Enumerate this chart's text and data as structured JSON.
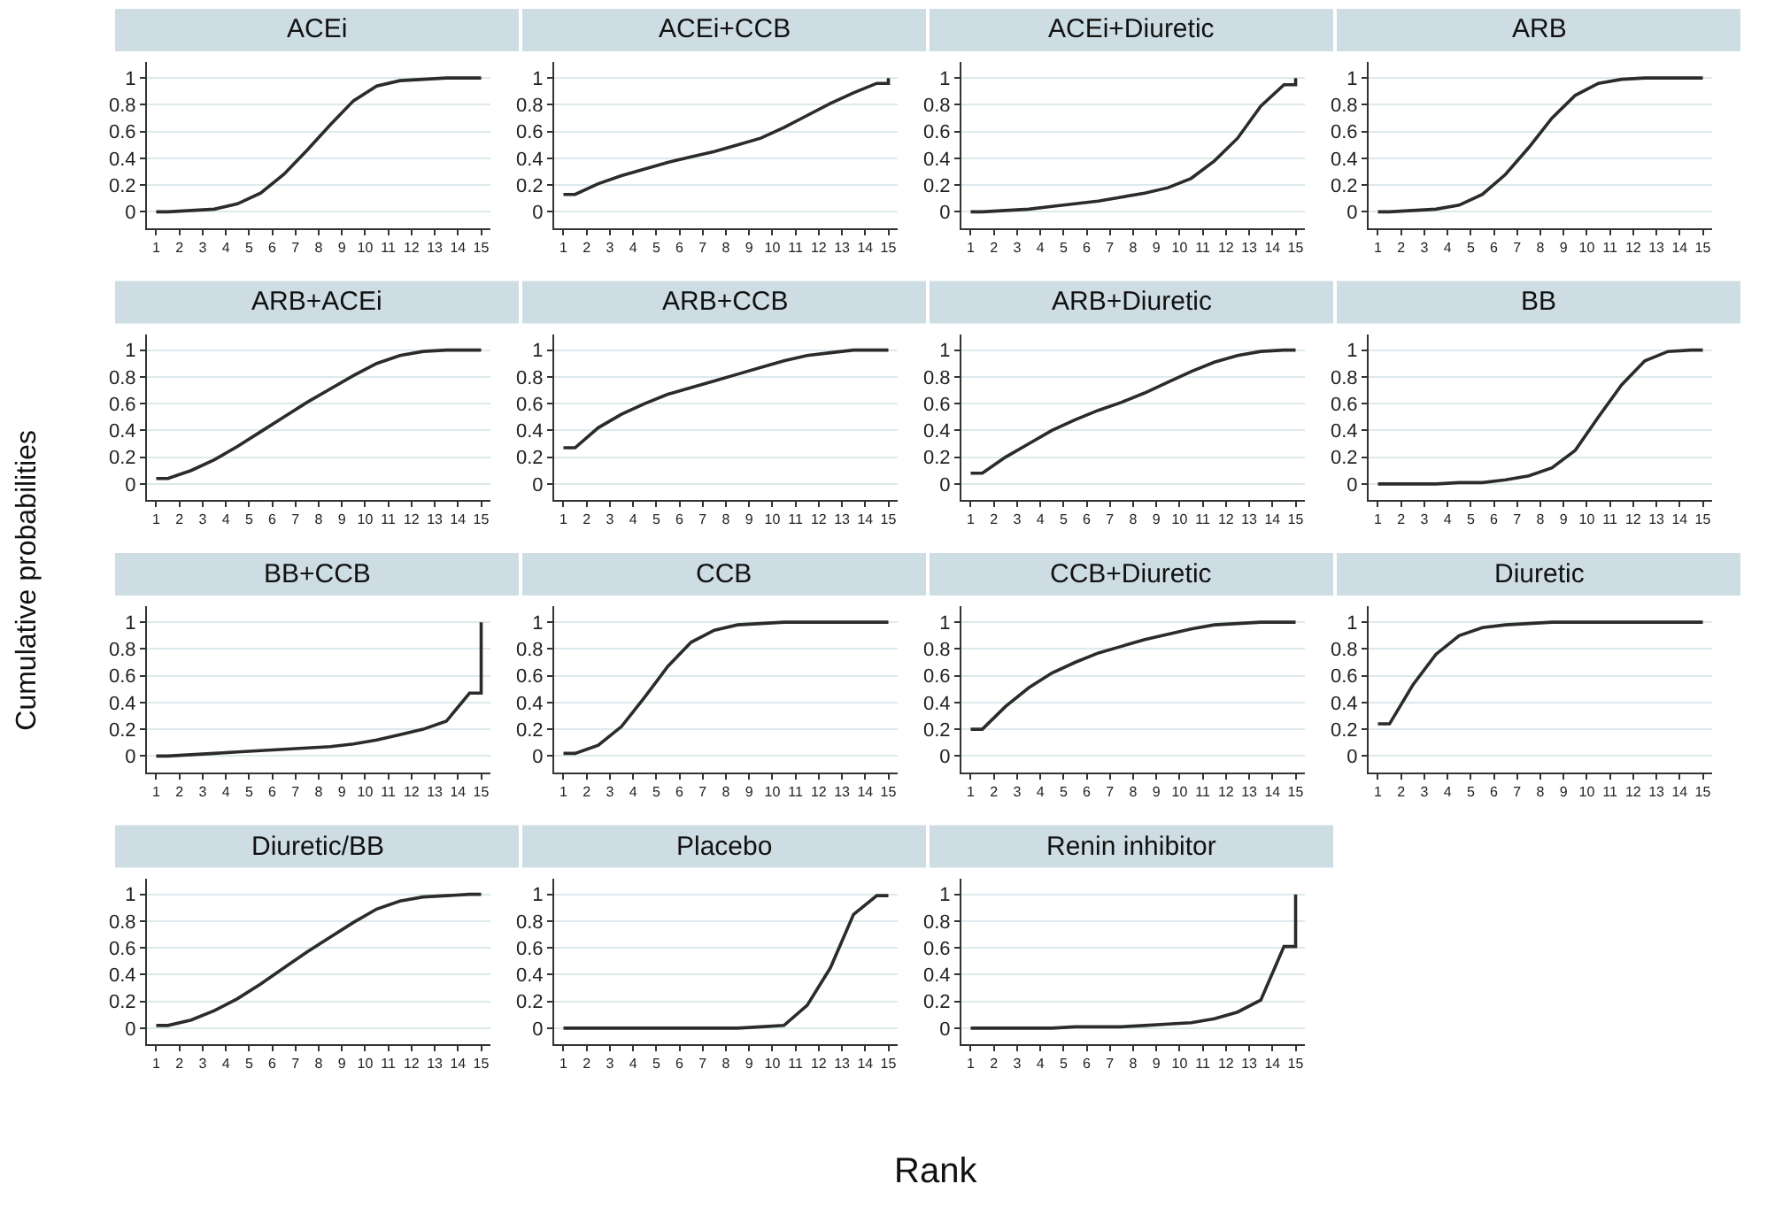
{
  "chart_data": [
    {
      "type": "line",
      "title": "ACEi",
      "x": [
        1,
        1.5,
        2.5,
        3.5,
        4.5,
        5.5,
        6.5,
        7.5,
        8.5,
        9.5,
        10.5,
        11.5,
        12.5,
        13.5,
        14.5,
        15,
        15
      ],
      "series": [
        {
          "color": "#2b2b2b",
          "values": [
            0,
            0,
            0.01,
            0.02,
            0.06,
            0.14,
            0.28,
            0.46,
            0.65,
            0.83,
            0.94,
            0.98,
            0.99,
            1,
            1,
            1,
            1
          ]
        }
      ],
      "xlim": [
        0.6,
        15.4
      ],
      "xticks": [
        1,
        2,
        3,
        4,
        5,
        6,
        7,
        8,
        9,
        10,
        11,
        12,
        13,
        14,
        15
      ],
      "ylim": [
        -0.12,
        1.12
      ],
      "yticks": [
        0,
        0.2,
        0.4,
        0.6,
        0.8,
        1
      ],
      "grid": "y",
      "marker": "none",
      "line_style": "solid"
    },
    {
      "type": "line",
      "title": "ACEi+CCB",
      "x": [
        1,
        1.5,
        2.5,
        3.5,
        4.5,
        5.5,
        6.5,
        7.5,
        8.5,
        9.5,
        10.5,
        11.5,
        12.5,
        13.5,
        14.5,
        15,
        15
      ],
      "series": [
        {
          "color": "#2b2b2b",
          "values": [
            0.13,
            0.13,
            0.21,
            0.27,
            0.32,
            0.37,
            0.41,
            0.45,
            0.5,
            0.55,
            0.63,
            0.72,
            0.81,
            0.89,
            0.96,
            0.96,
            1
          ]
        }
      ],
      "xlim": [
        0.6,
        15.4
      ],
      "xticks": [
        1,
        2,
        3,
        4,
        5,
        6,
        7,
        8,
        9,
        10,
        11,
        12,
        13,
        14,
        15
      ],
      "ylim": [
        -0.12,
        1.12
      ],
      "yticks": [
        0,
        0.2,
        0.4,
        0.6,
        0.8,
        1
      ],
      "grid": "y",
      "marker": "none",
      "line_style": "solid"
    },
    {
      "type": "line",
      "title": "ACEi+Diuretic",
      "x": [
        1,
        1.5,
        2.5,
        3.5,
        4.5,
        5.5,
        6.5,
        7.5,
        8.5,
        9.5,
        10.5,
        11.5,
        12.5,
        13.5,
        14.5,
        15,
        15
      ],
      "series": [
        {
          "color": "#2b2b2b",
          "values": [
            0,
            0,
            0.01,
            0.02,
            0.04,
            0.06,
            0.08,
            0.11,
            0.14,
            0.18,
            0.25,
            0.38,
            0.55,
            0.79,
            0.95,
            0.95,
            1
          ]
        }
      ],
      "xlim": [
        0.6,
        15.4
      ],
      "xticks": [
        1,
        2,
        3,
        4,
        5,
        6,
        7,
        8,
        9,
        10,
        11,
        12,
        13,
        14,
        15
      ],
      "ylim": [
        -0.12,
        1.12
      ],
      "yticks": [
        0,
        0.2,
        0.4,
        0.6,
        0.8,
        1
      ],
      "grid": "y",
      "marker": "none",
      "line_style": "solid"
    },
    {
      "type": "line",
      "title": "ARB",
      "x": [
        1,
        1.5,
        2.5,
        3.5,
        4.5,
        5.5,
        6.5,
        7.5,
        8.5,
        9.5,
        10.5,
        11.5,
        12.5,
        13.5,
        14.5,
        15,
        15
      ],
      "series": [
        {
          "color": "#2b2b2b",
          "values": [
            0,
            0,
            0.01,
            0.02,
            0.05,
            0.13,
            0.28,
            0.48,
            0.7,
            0.87,
            0.96,
            0.99,
            1,
            1,
            1,
            1,
            1
          ]
        }
      ],
      "xlim": [
        0.6,
        15.4
      ],
      "xticks": [
        1,
        2,
        3,
        4,
        5,
        6,
        7,
        8,
        9,
        10,
        11,
        12,
        13,
        14,
        15
      ],
      "ylim": [
        -0.12,
        1.12
      ],
      "yticks": [
        0,
        0.2,
        0.4,
        0.6,
        0.8,
        1
      ],
      "grid": "y",
      "marker": "none",
      "line_style": "solid"
    },
    {
      "type": "line",
      "title": "ARB+ACEi",
      "x": [
        1,
        1.5,
        2.5,
        3.5,
        4.5,
        5.5,
        6.5,
        7.5,
        8.5,
        9.5,
        10.5,
        11.5,
        12.5,
        13.5,
        14.5,
        15,
        15
      ],
      "series": [
        {
          "color": "#2b2b2b",
          "values": [
            0.04,
            0.04,
            0.1,
            0.18,
            0.28,
            0.39,
            0.5,
            0.61,
            0.71,
            0.81,
            0.9,
            0.96,
            0.99,
            1,
            1,
            1,
            1
          ]
        }
      ],
      "xlim": [
        0.6,
        15.4
      ],
      "xticks": [
        1,
        2,
        3,
        4,
        5,
        6,
        7,
        8,
        9,
        10,
        11,
        12,
        13,
        14,
        15
      ],
      "ylim": [
        -0.12,
        1.12
      ],
      "yticks": [
        0,
        0.2,
        0.4,
        0.6,
        0.8,
        1
      ],
      "grid": "y",
      "marker": "none",
      "line_style": "solid"
    },
    {
      "type": "line",
      "title": "ARB+CCB",
      "x": [
        1,
        1.5,
        2.5,
        3.5,
        4.5,
        5.5,
        6.5,
        7.5,
        8.5,
        9.5,
        10.5,
        11.5,
        12.5,
        13.5,
        14.5,
        15,
        15
      ],
      "series": [
        {
          "color": "#2b2b2b",
          "values": [
            0.27,
            0.27,
            0.42,
            0.52,
            0.6,
            0.67,
            0.72,
            0.77,
            0.82,
            0.87,
            0.92,
            0.96,
            0.98,
            1,
            1,
            1,
            1
          ]
        }
      ],
      "xlim": [
        0.6,
        15.4
      ],
      "xticks": [
        1,
        2,
        3,
        4,
        5,
        6,
        7,
        8,
        9,
        10,
        11,
        12,
        13,
        14,
        15
      ],
      "ylim": [
        -0.12,
        1.12
      ],
      "yticks": [
        0,
        0.2,
        0.4,
        0.6,
        0.8,
        1
      ],
      "grid": "y",
      "marker": "none",
      "line_style": "solid"
    },
    {
      "type": "line",
      "title": "ARB+Diuretic",
      "x": [
        1,
        1.5,
        2.5,
        3.5,
        4.5,
        5.5,
        6.5,
        7.5,
        8.5,
        9.5,
        10.5,
        11.5,
        12.5,
        13.5,
        14.5,
        15,
        15
      ],
      "series": [
        {
          "color": "#2b2b2b",
          "values": [
            0.08,
            0.08,
            0.2,
            0.3,
            0.4,
            0.48,
            0.55,
            0.61,
            0.68,
            0.76,
            0.84,
            0.91,
            0.96,
            0.99,
            1,
            1,
            1
          ]
        }
      ],
      "xlim": [
        0.6,
        15.4
      ],
      "xticks": [
        1,
        2,
        3,
        4,
        5,
        6,
        7,
        8,
        9,
        10,
        11,
        12,
        13,
        14,
        15
      ],
      "ylim": [
        -0.12,
        1.12
      ],
      "yticks": [
        0,
        0.2,
        0.4,
        0.6,
        0.8,
        1
      ],
      "grid": "y",
      "marker": "none",
      "line_style": "solid"
    },
    {
      "type": "line",
      "title": "BB",
      "x": [
        1,
        1.5,
        2.5,
        3.5,
        4.5,
        5.5,
        6.5,
        7.5,
        8.5,
        9.5,
        10.5,
        11.5,
        12.5,
        13.5,
        14.5,
        15,
        15
      ],
      "series": [
        {
          "color": "#2b2b2b",
          "values": [
            0,
            0,
            0,
            0,
            0.01,
            0.01,
            0.03,
            0.06,
            0.12,
            0.25,
            0.5,
            0.74,
            0.92,
            0.99,
            1,
            1,
            1
          ]
        }
      ],
      "xlim": [
        0.6,
        15.4
      ],
      "xticks": [
        1,
        2,
        3,
        4,
        5,
        6,
        7,
        8,
        9,
        10,
        11,
        12,
        13,
        14,
        15
      ],
      "ylim": [
        -0.12,
        1.12
      ],
      "yticks": [
        0,
        0.2,
        0.4,
        0.6,
        0.8,
        1
      ],
      "grid": "y",
      "marker": "none",
      "line_style": "solid"
    },
    {
      "type": "line",
      "title": "BB+CCB",
      "x": [
        1,
        1.5,
        2.5,
        3.5,
        4.5,
        5.5,
        6.5,
        7.5,
        8.5,
        9.5,
        10.5,
        11.5,
        12.5,
        13.5,
        14.5,
        15,
        15
      ],
      "series": [
        {
          "color": "#2b2b2b",
          "values": [
            0,
            0,
            0.01,
            0.02,
            0.03,
            0.04,
            0.05,
            0.06,
            0.07,
            0.09,
            0.12,
            0.16,
            0.2,
            0.26,
            0.47,
            0.47,
            1
          ]
        }
      ],
      "xlim": [
        0.6,
        15.4
      ],
      "xticks": [
        1,
        2,
        3,
        4,
        5,
        6,
        7,
        8,
        9,
        10,
        11,
        12,
        13,
        14,
        15
      ],
      "ylim": [
        -0.12,
        1.12
      ],
      "yticks": [
        0,
        0.2,
        0.4,
        0.6,
        0.8,
        1
      ],
      "grid": "y",
      "marker": "none",
      "line_style": "solid"
    },
    {
      "type": "line",
      "title": "CCB",
      "x": [
        1,
        1.5,
        2.5,
        3.5,
        4.5,
        5.5,
        6.5,
        7.5,
        8.5,
        9.5,
        10.5,
        11.5,
        12.5,
        13.5,
        14.5,
        15,
        15
      ],
      "series": [
        {
          "color": "#2b2b2b",
          "values": [
            0.02,
            0.02,
            0.08,
            0.22,
            0.44,
            0.67,
            0.85,
            0.94,
            0.98,
            0.99,
            1,
            1,
            1,
            1,
            1,
            1,
            1
          ]
        }
      ],
      "xlim": [
        0.6,
        15.4
      ],
      "xticks": [
        1,
        2,
        3,
        4,
        5,
        6,
        7,
        8,
        9,
        10,
        11,
        12,
        13,
        14,
        15
      ],
      "ylim": [
        -0.12,
        1.12
      ],
      "yticks": [
        0,
        0.2,
        0.4,
        0.6,
        0.8,
        1
      ],
      "grid": "y",
      "marker": "none",
      "line_style": "solid"
    },
    {
      "type": "line",
      "title": "CCB+Diuretic",
      "x": [
        1,
        1.5,
        2.5,
        3.5,
        4.5,
        5.5,
        6.5,
        7.5,
        8.5,
        9.5,
        10.5,
        11.5,
        12.5,
        13.5,
        14.5,
        15,
        15
      ],
      "series": [
        {
          "color": "#2b2b2b",
          "values": [
            0.2,
            0.2,
            0.37,
            0.51,
            0.62,
            0.7,
            0.77,
            0.82,
            0.87,
            0.91,
            0.95,
            0.98,
            0.99,
            1,
            1,
            1,
            1
          ]
        }
      ],
      "xlim": [
        0.6,
        15.4
      ],
      "xticks": [
        1,
        2,
        3,
        4,
        5,
        6,
        7,
        8,
        9,
        10,
        11,
        12,
        13,
        14,
        15
      ],
      "ylim": [
        -0.12,
        1.12
      ],
      "yticks": [
        0,
        0.2,
        0.4,
        0.6,
        0.8,
        1
      ],
      "grid": "y",
      "marker": "none",
      "line_style": "solid"
    },
    {
      "type": "line",
      "title": "Diuretic",
      "x": [
        1,
        1.5,
        2.5,
        3.5,
        4.5,
        5.5,
        6.5,
        7.5,
        8.5,
        9.5,
        10.5,
        11.5,
        12.5,
        13.5,
        14.5,
        15,
        15
      ],
      "series": [
        {
          "color": "#2b2b2b",
          "values": [
            0.24,
            0.24,
            0.53,
            0.76,
            0.9,
            0.96,
            0.98,
            0.99,
            1,
            1,
            1,
            1,
            1,
            1,
            1,
            1,
            1
          ]
        }
      ],
      "xlim": [
        0.6,
        15.4
      ],
      "xticks": [
        1,
        2,
        3,
        4,
        5,
        6,
        7,
        8,
        9,
        10,
        11,
        12,
        13,
        14,
        15
      ],
      "ylim": [
        -0.12,
        1.12
      ],
      "yticks": [
        0,
        0.2,
        0.4,
        0.6,
        0.8,
        1
      ],
      "grid": "y",
      "marker": "none",
      "line_style": "solid"
    },
    {
      "type": "line",
      "title": "Diuretic/BB",
      "x": [
        1,
        1.5,
        2.5,
        3.5,
        4.5,
        5.5,
        6.5,
        7.5,
        8.5,
        9.5,
        10.5,
        11.5,
        12.5,
        13.5,
        14.5,
        15,
        15
      ],
      "series": [
        {
          "color": "#2b2b2b",
          "values": [
            0.02,
            0.02,
            0.06,
            0.13,
            0.22,
            0.33,
            0.45,
            0.57,
            0.68,
            0.79,
            0.89,
            0.95,
            0.98,
            0.99,
            1,
            1,
            1
          ]
        }
      ],
      "xlim": [
        0.6,
        15.4
      ],
      "xticks": [
        1,
        2,
        3,
        4,
        5,
        6,
        7,
        8,
        9,
        10,
        11,
        12,
        13,
        14,
        15
      ],
      "ylim": [
        -0.12,
        1.12
      ],
      "yticks": [
        0,
        0.2,
        0.4,
        0.6,
        0.8,
        1
      ],
      "grid": "y",
      "marker": "none",
      "line_style": "solid"
    },
    {
      "type": "line",
      "title": "Placebo",
      "x": [
        1,
        1.5,
        2.5,
        3.5,
        4.5,
        5.5,
        6.5,
        7.5,
        8.5,
        9.5,
        10.5,
        11.5,
        12.5,
        13.5,
        14.5,
        15,
        15
      ],
      "series": [
        {
          "color": "#2b2b2b",
          "values": [
            0,
            0,
            0,
            0,
            0,
            0,
            0,
            0,
            0,
            0.01,
            0.02,
            0.17,
            0.45,
            0.85,
            0.99,
            0.99,
            0.99
          ]
        }
      ],
      "xlim": [
        0.6,
        15.4
      ],
      "xticks": [
        1,
        2,
        3,
        4,
        5,
        6,
        7,
        8,
        9,
        10,
        11,
        12,
        13,
        14,
        15
      ],
      "ylim": [
        -0.12,
        1.12
      ],
      "yticks": [
        0,
        0.2,
        0.4,
        0.6,
        0.8,
        1
      ],
      "grid": "y",
      "marker": "none",
      "line_style": "solid"
    },
    {
      "type": "line",
      "title": "Renin inhibitor",
      "x": [
        1,
        1.5,
        2.5,
        3.5,
        4.5,
        5.5,
        6.5,
        7.5,
        8.5,
        9.5,
        10.5,
        11.5,
        12.5,
        13.5,
        14.5,
        15,
        15
      ],
      "series": [
        {
          "color": "#2b2b2b",
          "values": [
            0,
            0,
            0,
            0,
            0,
            0.01,
            0.01,
            0.01,
            0.02,
            0.03,
            0.04,
            0.07,
            0.12,
            0.21,
            0.61,
            0.61,
            1
          ]
        }
      ],
      "xlim": [
        0.6,
        15.4
      ],
      "xticks": [
        1,
        2,
        3,
        4,
        5,
        6,
        7,
        8,
        9,
        10,
        11,
        12,
        13,
        14,
        15
      ],
      "ylim": [
        -0.12,
        1.12
      ],
      "yticks": [
        0,
        0.2,
        0.4,
        0.6,
        0.8,
        1
      ],
      "grid": "y",
      "marker": "none",
      "line_style": "solid"
    },
    {
      "type": "other",
      "xlabel": "Rank",
      "ylabel": "Cumulative probabilities"
    }
  ]
}
